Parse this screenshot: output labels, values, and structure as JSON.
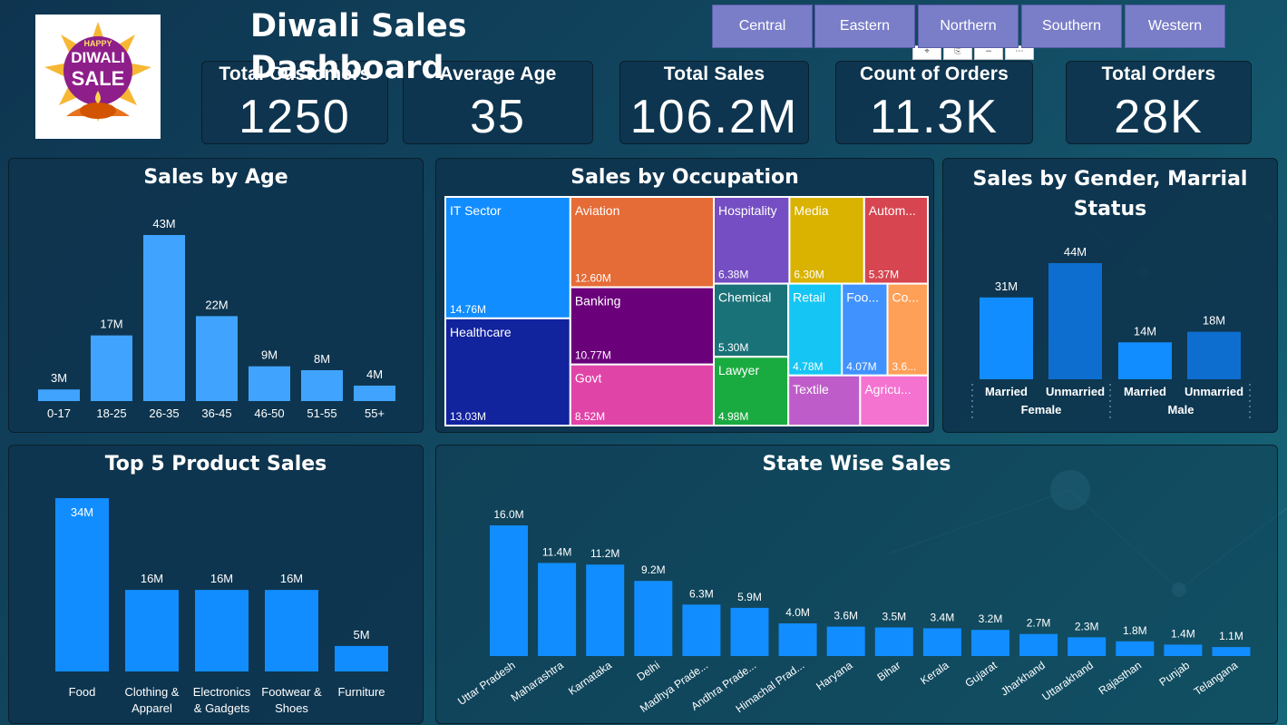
{
  "header": {
    "title": "Diwali Sales Dashboard",
    "logo": {
      "line1": "HAPPY",
      "line2": "DIWALI",
      "line3": "SALE"
    }
  },
  "slicer": {
    "regions": [
      "Central",
      "Eastern",
      "Northern",
      "Southern",
      "Western"
    ]
  },
  "kpis": [
    {
      "label": "Total Customers",
      "value": "1250"
    },
    {
      "label": "Average Age",
      "value": "35"
    },
    {
      "label": "Total Sales",
      "value": "106.2M"
    },
    {
      "label": "Count of Orders",
      "value": "11.3K"
    },
    {
      "label": "Total Orders",
      "value": "28K"
    }
  ],
  "colors": {
    "bar_light": "#40a4ff",
    "bar_blue": "#118dff",
    "bar_dark": "#0d6ecf",
    "slicer": "#7a7ec8"
  },
  "chart_data": [
    {
      "id": "age",
      "type": "bar",
      "title": "Sales by Age",
      "categories": [
        "0-17",
        "18-25",
        "26-35",
        "36-45",
        "46-50",
        "51-55",
        "55+"
      ],
      "values": [
        3,
        17,
        43,
        22,
        9,
        8,
        4
      ],
      "labels": [
        "3M",
        "17M",
        "43M",
        "22M",
        "9M",
        "8M",
        "4M"
      ],
      "unit": "M",
      "ylim": [
        0,
        43
      ]
    },
    {
      "id": "occupation",
      "type": "treemap",
      "title": "Sales by Occupation",
      "items": [
        {
          "name": "IT Sector",
          "value": 14.76,
          "label": "14.76M",
          "color": "#118dff"
        },
        {
          "name": "Healthcare",
          "value": 13.03,
          "label": "13.03M",
          "color": "#12239e"
        },
        {
          "name": "Aviation",
          "value": 12.6,
          "label": "12.60M",
          "color": "#e66c37"
        },
        {
          "name": "Banking",
          "value": 10.77,
          "label": "10.77M",
          "color": "#6b007b"
        },
        {
          "name": "Govt",
          "value": 8.52,
          "label": "8.52M",
          "color": "#e044a7"
        },
        {
          "name": "Hospitality",
          "value": 6.38,
          "label": "6.38M",
          "color": "#744ec2"
        },
        {
          "name": "Media",
          "value": 6.3,
          "label": "6.30M",
          "color": "#d9b300"
        },
        {
          "name": "Autom...",
          "value": 5.37,
          "label": "5.37M",
          "color": "#d64550"
        },
        {
          "name": "Chemical",
          "value": 5.3,
          "label": "5.30M",
          "color": "#197278"
        },
        {
          "name": "Lawyer",
          "value": 4.98,
          "label": "4.98M",
          "color": "#1aab40"
        },
        {
          "name": "Retail",
          "value": 4.78,
          "label": "4.78M",
          "color": "#15c6f4"
        },
        {
          "name": "Foo...",
          "value": 4.07,
          "label": "4.07M",
          "color": "#4092ff"
        },
        {
          "name": "Co...",
          "value": 3.6,
          "label": "3.6...",
          "color": "#ffa058"
        },
        {
          "name": "Textile",
          "value": 3.5,
          "label": "",
          "color": "#be5dc9"
        },
        {
          "name": "Agricu...",
          "value": 3.3,
          "label": "",
          "color": "#f472d0"
        }
      ]
    },
    {
      "id": "gender",
      "type": "bar",
      "title": "Sales by Gender, Marrial Status",
      "categories": [
        "Married",
        "Unmarried",
        "Married",
        "Unmarried"
      ],
      "groups": [
        "Female",
        "Male"
      ],
      "values": [
        31,
        44,
        14,
        18
      ],
      "labels": [
        "31M",
        "44M",
        "14M",
        "18M"
      ],
      "unit": "M",
      "ylim": [
        0,
        44
      ]
    },
    {
      "id": "product",
      "type": "bar",
      "title": "Top 5 Product Sales",
      "categories": [
        "Food",
        "Clothing & Apparel",
        "Electronics & Gadgets",
        "Footwear & Shoes",
        "Furniture"
      ],
      "category_lines": [
        [
          "Food"
        ],
        [
          "Clothing &",
          "Apparel"
        ],
        [
          "Electronics",
          "& Gadgets"
        ],
        [
          "Footwear &",
          "Shoes"
        ],
        [
          "Furniture"
        ]
      ],
      "values": [
        34,
        16,
        16,
        16,
        5
      ],
      "labels": [
        "34M",
        "16M",
        "16M",
        "16M",
        "5M"
      ],
      "unit": "M",
      "ylim": [
        0,
        34
      ]
    },
    {
      "id": "state",
      "type": "bar",
      "title": "State Wise Sales",
      "categories": [
        "Uttar Pradesh",
        "Maharashtra",
        "Karnataka",
        "Delhi",
        "Madhya Prade...",
        "Andhra Prade...",
        "Himachal Prad...",
        "Haryana",
        "Bihar",
        "Kerala",
        "Gujarat",
        "Jharkhand",
        "Uttarakhand",
        "Rajasthan",
        "Punjab",
        "Telangana"
      ],
      "values": [
        16.0,
        11.4,
        11.2,
        9.2,
        6.3,
        5.9,
        4.0,
        3.6,
        3.5,
        3.4,
        3.2,
        2.7,
        2.3,
        1.8,
        1.4,
        1.1
      ],
      "labels": [
        "16.0M",
        "11.4M",
        "11.2M",
        "9.2M",
        "6.3M",
        "5.9M",
        "4.0M",
        "3.6M",
        "3.5M",
        "3.4M",
        "3.2M",
        "2.7M",
        "2.3M",
        "1.8M",
        "1.4M",
        "1.1M"
      ],
      "unit": "M",
      "ylim": [
        0,
        16
      ]
    }
  ]
}
